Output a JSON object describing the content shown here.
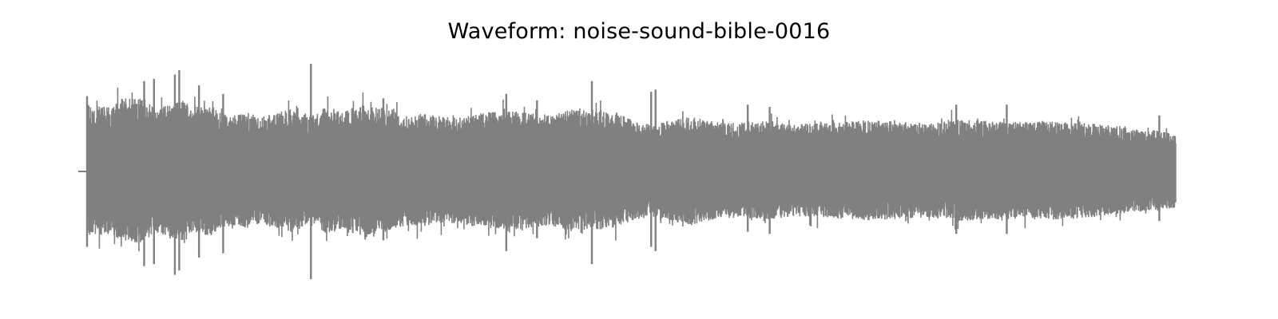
{
  "chart_data": {
    "type": "area",
    "title": "Waveform: noise-sound-bible-0016",
    "xlabel": "",
    "ylabel": "",
    "axes_visible": false,
    "grid": false,
    "series": [
      {
        "color": "#808080"
      }
    ],
    "ylim": [
      -1.0,
      1.0
    ],
    "envelope": {
      "x": [
        0.0,
        0.008,
        0.009,
        0.03,
        0.04,
        0.06,
        0.07,
        0.08,
        0.095,
        0.105,
        0.12,
        0.13,
        0.14,
        0.155,
        0.165,
        0.185,
        0.195,
        0.215,
        0.225,
        0.24,
        0.255,
        0.285,
        0.3,
        0.315,
        0.34,
        0.37,
        0.4,
        0.43,
        0.45,
        0.47,
        0.49,
        0.51,
        0.525,
        0.54,
        0.56,
        0.58,
        0.6,
        0.625,
        0.65,
        0.68,
        0.72,
        0.75,
        0.78,
        0.8,
        0.83,
        0.86,
        0.88,
        0.905,
        0.93,
        0.96,
        0.985,
        1.0
      ],
      "upper": [
        0.0,
        0.0,
        0.62,
        0.6,
        0.68,
        0.68,
        0.58,
        0.62,
        0.66,
        0.58,
        0.62,
        0.55,
        0.52,
        0.55,
        0.5,
        0.56,
        0.58,
        0.52,
        0.6,
        0.55,
        0.62,
        0.58,
        0.52,
        0.54,
        0.5,
        0.55,
        0.56,
        0.52,
        0.58,
        0.56,
        0.55,
        0.45,
        0.44,
        0.48,
        0.52,
        0.46,
        0.45,
        0.47,
        0.44,
        0.45,
        0.48,
        0.46,
        0.45,
        0.48,
        0.47,
        0.46,
        0.47,
        0.46,
        0.44,
        0.4,
        0.38,
        0.36
      ],
      "lower": [
        0.0,
        0.0,
        -0.6,
        -0.58,
        -0.66,
        -0.66,
        -0.56,
        -0.6,
        -0.64,
        -0.56,
        -0.6,
        -0.53,
        -0.5,
        -0.53,
        -0.48,
        -0.54,
        -0.56,
        -0.5,
        -0.58,
        -0.53,
        -0.6,
        -0.56,
        -0.5,
        -0.52,
        -0.48,
        -0.53,
        -0.54,
        -0.5,
        -0.56,
        -0.54,
        -0.53,
        -0.43,
        -0.42,
        -0.46,
        -0.5,
        -0.44,
        -0.43,
        -0.45,
        -0.42,
        -0.43,
        -0.46,
        -0.44,
        -0.43,
        -0.46,
        -0.45,
        -0.44,
        -0.45,
        -0.44,
        -0.42,
        -0.38,
        -0.36,
        -0.34
      ]
    },
    "peaks": [
      {
        "x": 0.008,
        "top": 0.7,
        "bottom": -0.7
      },
      {
        "x": 0.06,
        "top": 0.84,
        "bottom": -0.88
      },
      {
        "x": 0.069,
        "top": 0.86,
        "bottom": -0.86
      },
      {
        "x": 0.088,
        "top": 0.9,
        "bottom": -0.96
      },
      {
        "x": 0.092,
        "top": 0.94,
        "bottom": -0.92
      },
      {
        "x": 0.11,
        "top": 0.8,
        "bottom": -0.8
      },
      {
        "x": 0.132,
        "top": 0.72,
        "bottom": -0.76
      },
      {
        "x": 0.212,
        "top": 1.0,
        "bottom": -1.0
      },
      {
        "x": 0.278,
        "top": 0.68,
        "bottom": -0.64
      },
      {
        "x": 0.39,
        "top": 0.72,
        "bottom": -0.74
      },
      {
        "x": 0.418,
        "top": 0.66,
        "bottom": -0.62
      },
      {
        "x": 0.468,
        "top": 0.84,
        "bottom": -0.86
      },
      {
        "x": 0.522,
        "top": 0.74,
        "bottom": -0.7
      },
      {
        "x": 0.526,
        "top": 0.76,
        "bottom": -0.74
      },
      {
        "x": 0.61,
        "top": 0.62,
        "bottom": -0.56
      },
      {
        "x": 0.63,
        "top": 0.6,
        "bottom": -0.58
      },
      {
        "x": 0.8,
        "top": 0.62,
        "bottom": -0.58
      },
      {
        "x": 0.846,
        "top": 0.62,
        "bottom": -0.58
      },
      {
        "x": 0.985,
        "top": 0.52,
        "bottom": -0.46
      }
    ]
  }
}
